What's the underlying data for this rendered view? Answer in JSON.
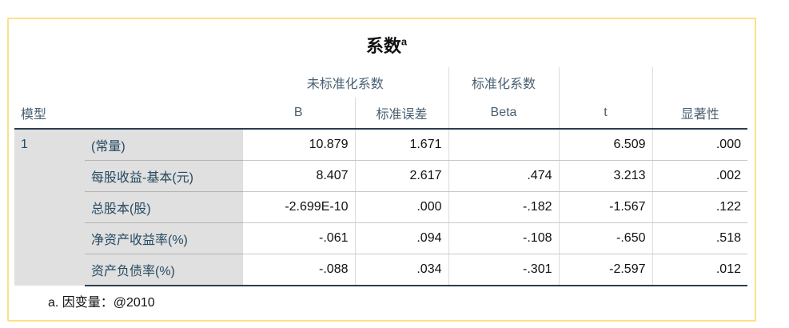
{
  "title": "系数",
  "title_sup": "a",
  "headers": {
    "model": "模型",
    "unstd": "未标准化系数",
    "std": "标准化系数",
    "B": "B",
    "se": "标准误差",
    "beta": "Beta",
    "t": "t",
    "sig": "显著性"
  },
  "model_no": "1",
  "rows": [
    {
      "label": "(常量)",
      "B": "10.879",
      "se": "1.671",
      "beta": "",
      "t": "6.509",
      "sig": ".000"
    },
    {
      "label": "每股收益-基本(元)",
      "B": "8.407",
      "se": "2.617",
      "beta": ".474",
      "t": "3.213",
      "sig": ".002"
    },
    {
      "label": "总股本(股)",
      "B": "-2.699E-10",
      "se": ".000",
      "beta": "-.182",
      "t": "-1.567",
      "sig": ".122"
    },
    {
      "label": "净资产收益率(%)",
      "B": "-.061",
      "se": ".094",
      "beta": "-.108",
      "t": "-.650",
      "sig": ".518"
    },
    {
      "label": "资产负债率(%)",
      "B": "-.088",
      "se": ".034",
      "beta": "-.301",
      "t": "-2.597",
      "sig": ".012"
    }
  ],
  "footnote": "a. 因变量：@2010"
}
